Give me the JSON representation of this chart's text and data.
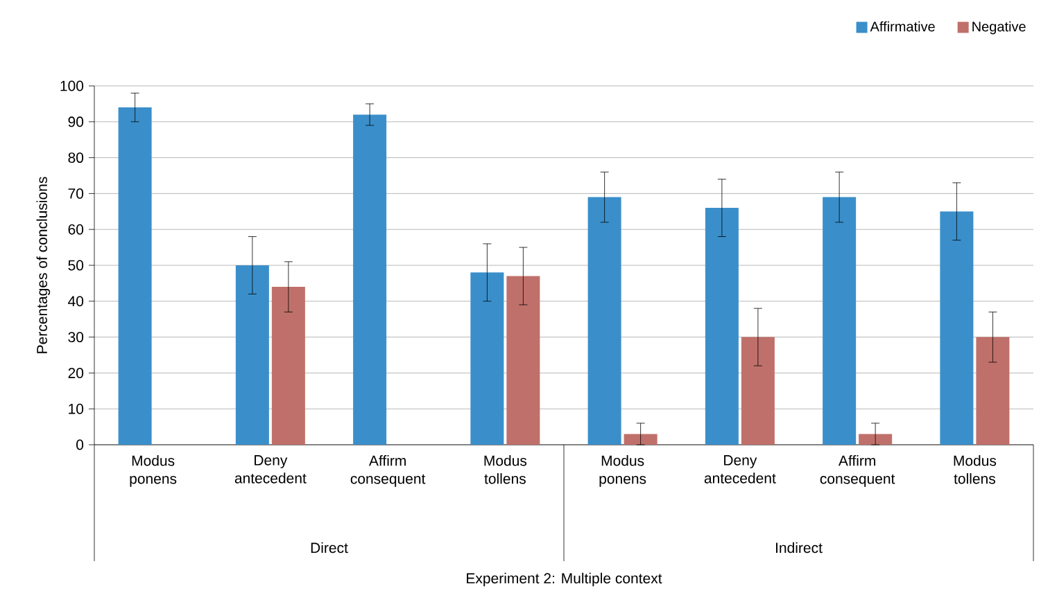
{
  "chart_data": {
    "type": "bar",
    "ylabel": "Percentages of conclusions",
    "categories": [
      "Modus ponens",
      "Deny antecedent",
      "Affirm consequent",
      "Modus tollens",
      "Modus ponens",
      "Deny antecedent",
      "Affirm consequent",
      "Modus tollens"
    ],
    "series": [
      {
        "name": "Affirmative",
        "color": "#3a8fcb",
        "values": [
          94,
          50,
          92,
          48,
          69,
          66,
          69,
          65
        ],
        "errors": [
          4,
          8,
          3,
          8,
          7,
          8,
          7,
          8
        ]
      },
      {
        "name": "Negative",
        "color": "#c0706a",
        "values": [
          0,
          44,
          0,
          47,
          3,
          30,
          3,
          30
        ],
        "errors": [
          null,
          7,
          null,
          8,
          3,
          8,
          3,
          7
        ]
      }
    ],
    "annotations": [
      "Direct",
      "Indirect",
      "Experiment 2: Multiple context"
    ],
    "ylim": [
      0,
      100
    ],
    "yticks": [
      0,
      10,
      20,
      30,
      40,
      50,
      60,
      70,
      80,
      90,
      100
    ],
    "grid": "y",
    "legend": "top right"
  }
}
